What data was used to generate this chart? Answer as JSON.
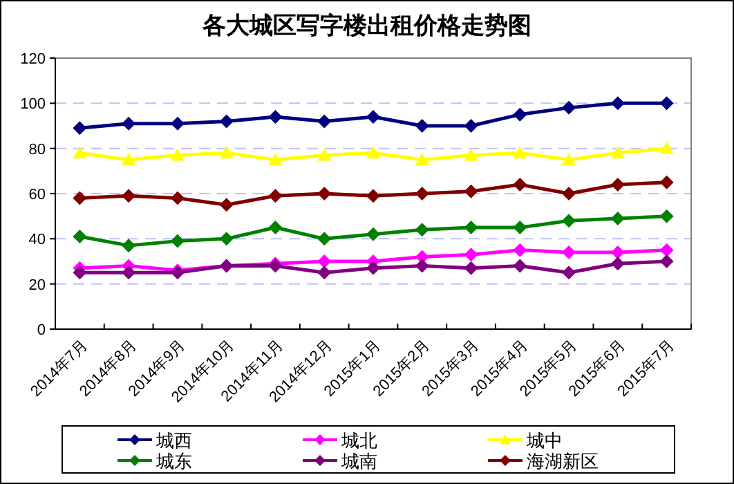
{
  "chart_data": {
    "type": "line",
    "title": "各大城区写字楼出租价格走势图",
    "categories": [
      "2014年7月",
      "2014年8月",
      "2014年9月",
      "2014年10月",
      "2014年11月",
      "2014年12月",
      "2015年1月",
      "2015年2月",
      "2015年3月",
      "2015年4月",
      "2015年5月",
      "2015年6月",
      "2015年7月"
    ],
    "series": [
      {
        "name": "城西",
        "color": "#000080",
        "marker": "diamond",
        "values": [
          89,
          91,
          91,
          92,
          94,
          92,
          94,
          90,
          90,
          95,
          98,
          100,
          100
        ]
      },
      {
        "name": "城北",
        "color": "#ff00ff",
        "marker": "diamond",
        "values": [
          27,
          28,
          26,
          28,
          29,
          30,
          30,
          32,
          33,
          35,
          34,
          34,
          35
        ]
      },
      {
        "name": "城中",
        "color": "#ffff00",
        "marker": "triangle",
        "values": [
          78,
          75,
          77,
          78,
          75,
          77,
          78,
          75,
          77,
          78,
          75,
          78,
          80
        ]
      },
      {
        "name": "城东",
        "color": "#008000",
        "marker": "diamond",
        "values": [
          41,
          37,
          39,
          40,
          45,
          40,
          42,
          44,
          45,
          45,
          48,
          49,
          50
        ]
      },
      {
        "name": "城南",
        "color": "#800080",
        "marker": "diamond",
        "values": [
          25,
          25,
          25,
          28,
          28,
          25,
          27,
          28,
          27,
          28,
          25,
          29,
          30
        ]
      },
      {
        "name": "海湖新区",
        "color": "#800000",
        "marker": "diamond",
        "values": [
          58,
          59,
          58,
          55,
          59,
          60,
          59,
          60,
          61,
          64,
          60,
          64,
          65
        ]
      }
    ],
    "ylim": [
      0,
      120
    ],
    "yticks": [
      0,
      20,
      40,
      60,
      80,
      100,
      120
    ],
    "grid": "y",
    "legend": "bottom",
    "line_style": "solid"
  }
}
